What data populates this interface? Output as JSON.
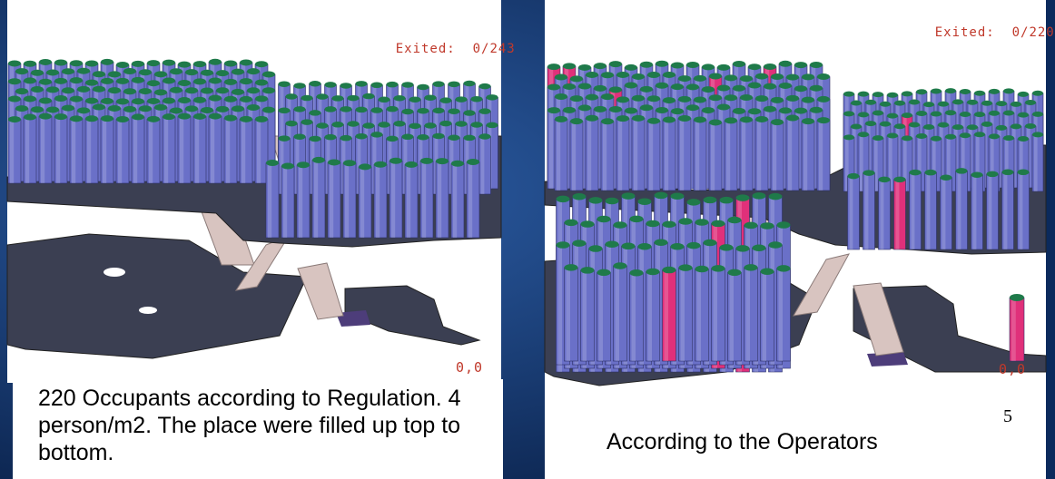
{
  "slide": {
    "page_number": "5"
  },
  "left_panel": {
    "exited_label": "Exited:",
    "exited_value": "0/243",
    "origin_label": "0,0",
    "caption": "220 Occupants according to Regulation. 4 person/m2. The place were filled up top to bottom."
  },
  "right_panel": {
    "exited_label": "Exited:",
    "exited_value": "0/220",
    "origin_label": "0,0",
    "caption": "According to the Operators"
  },
  "colors": {
    "background": "#0b2a5c",
    "occupant": "#6a70c8",
    "occupant_top": "#1f7a4a",
    "occupant_highlight": "#e0307a",
    "floor": "#3b3f52",
    "stair": "#d8c4c0",
    "counter_text": "#c0392b"
  }
}
